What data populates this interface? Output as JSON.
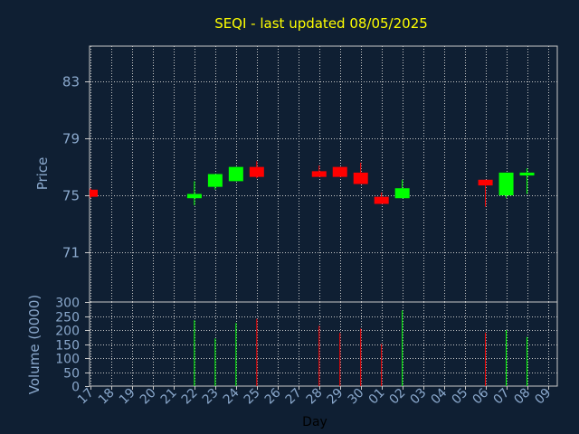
{
  "chart_data": {
    "type": "candlestick",
    "title": "SEQI - last updated 08/05/2025",
    "xlabel": "Day",
    "ylabel_price": "Price",
    "ylabel_volume": "Volume (0000)",
    "x_ticks": [
      "17",
      "18",
      "19",
      "20",
      "21",
      "22",
      "23",
      "24",
      "25",
      "26",
      "27",
      "28",
      "29",
      "30",
      "01",
      "02",
      "03",
      "04",
      "05",
      "06",
      "07",
      "08",
      "09"
    ],
    "price_ticks": [
      "83",
      "79",
      "75",
      "71"
    ],
    "price_tick_values": [
      83,
      79,
      75,
      71
    ],
    "price_range": [
      67.5,
      85.5
    ],
    "volume_ticks": [
      "300",
      "250",
      "200",
      "150",
      "100",
      "50",
      "0"
    ],
    "volume_tick_values": [
      300,
      250,
      200,
      150,
      100,
      50,
      0
    ],
    "volume_range": [
      0,
      300
    ],
    "grid": true,
    "colors": {
      "up": "#00ff00",
      "down": "#ff0000",
      "grid": "#c8c8c8",
      "background": "#0f1f33",
      "title": "#ffff00",
      "labels": "#8aa8cc"
    },
    "candles": [
      {
        "day": "17",
        "open": 75.4,
        "close": 74.9,
        "high": 75.5,
        "low": 74.8,
        "volume": 0
      },
      {
        "day": "22",
        "open": 74.8,
        "close": 75.1,
        "high": 76.0,
        "low": 74.3,
        "volume": 235
      },
      {
        "day": "23",
        "open": 75.6,
        "close": 76.5,
        "high": 76.5,
        "low": 75.4,
        "volume": 170
      },
      {
        "day": "24",
        "open": 76.0,
        "close": 77.0,
        "high": 77.0,
        "low": 76.0,
        "volume": 225
      },
      {
        "day": "25",
        "open": 77.0,
        "close": 76.3,
        "high": 77.4,
        "low": 76.2,
        "volume": 240
      },
      {
        "day": "28",
        "open": 76.7,
        "close": 76.3,
        "high": 77.1,
        "low": 76.3,
        "volume": 215
      },
      {
        "day": "29",
        "open": 77.0,
        "close": 76.3,
        "high": 77.0,
        "low": 76.3,
        "volume": 190
      },
      {
        "day": "30",
        "open": 76.6,
        "close": 75.8,
        "high": 77.3,
        "low": 75.8,
        "volume": 205
      },
      {
        "day": "01",
        "open": 74.9,
        "close": 74.4,
        "high": 75.2,
        "low": 74.4,
        "volume": 150
      },
      {
        "day": "02",
        "open": 74.8,
        "close": 75.5,
        "high": 76.1,
        "low": 74.8,
        "volume": 270
      },
      {
        "day": "06",
        "open": 76.1,
        "close": 75.7,
        "high": 76.1,
        "low": 74.2,
        "volume": 190
      },
      {
        "day": "07",
        "open": 75.0,
        "close": 76.6,
        "high": 76.6,
        "low": 74.8,
        "volume": 200
      },
      {
        "day": "08",
        "open": 76.4,
        "close": 76.6,
        "high": 76.9,
        "low": 75.1,
        "volume": 175
      }
    ]
  }
}
